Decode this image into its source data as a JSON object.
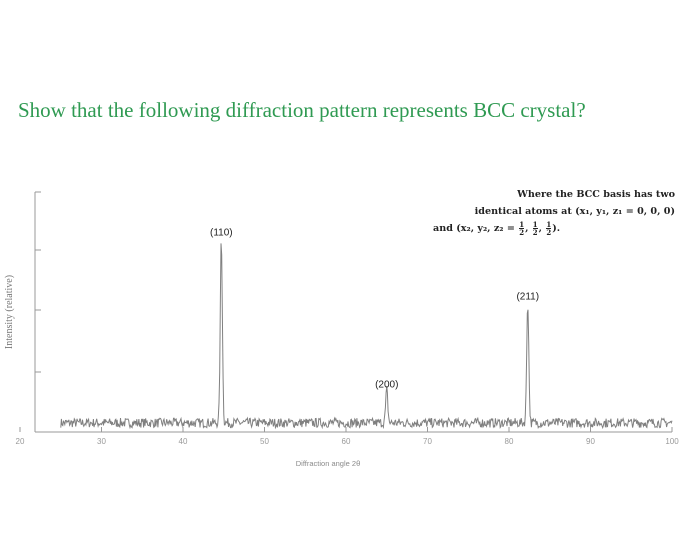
{
  "question": "Show that the following diffraction pattern represents BCC crystal?",
  "note": {
    "line1": "Where the BCC basis has two",
    "line2": "identical atoms at (x₁, y₁, z₁ = 0, 0, 0)",
    "line3_prefix": "and (x₂, y₂, z₂ =",
    "line3_suffix": ").",
    "fraction": {
      "num": "1",
      "den": "2"
    }
  },
  "colors": {
    "question": "#2f9a52",
    "trace": "#808080",
    "axes": "#999999"
  },
  "chart_data": {
    "type": "line",
    "title": "",
    "xlabel": "Diffraction angle 2θ",
    "ylabel": "Intensity (relative)",
    "xlim": [
      20,
      100
    ],
    "ylim": [
      0,
      100
    ],
    "x_ticks": [
      "20",
      "30",
      "40",
      "50",
      "60",
      "70",
      "80",
      "90",
      "100"
    ],
    "y_tick_labels": false,
    "baseline": 3,
    "peaks": [
      {
        "label": "(110)",
        "x": 44.7,
        "y": 78
      },
      {
        "label": "(200)",
        "x": 65.0,
        "y": 14
      },
      {
        "label": "(211)",
        "x": 82.3,
        "y": 51
      }
    ]
  }
}
